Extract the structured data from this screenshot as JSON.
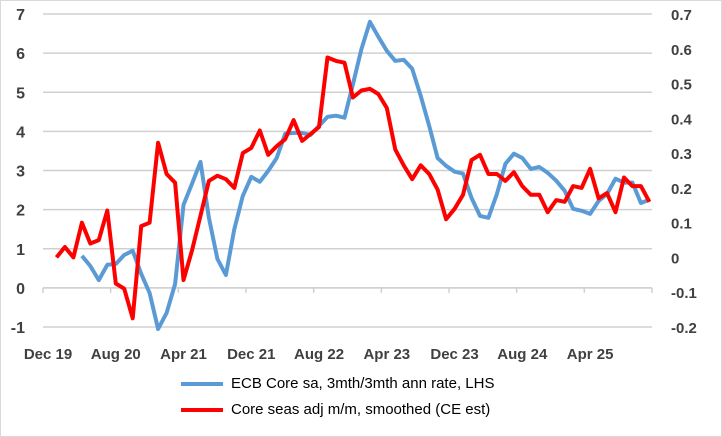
{
  "chart_data": {
    "type": "line",
    "x_tick_labels": [
      "Dec 19",
      "Aug 20",
      "Apr 21",
      "Dec 21",
      "Aug 22",
      "Apr 23",
      "Dec 23",
      "Aug 24",
      "Apr 25"
    ],
    "x_axis_start": "Dec 19",
    "x_axis_end": "Nov 25",
    "left_axis": {
      "ylim": [
        -1,
        7
      ],
      "ticks": [
        "7",
        "6",
        "5",
        "4",
        "3",
        "2",
        "1",
        "0",
        "-1"
      ],
      "tick_values": [
        7,
        6,
        5,
        4,
        3,
        2,
        1,
        0,
        -1
      ]
    },
    "right_axis": {
      "ylim": [
        -0.2,
        0.7
      ],
      "ticks": [
        "0.7",
        "0.6",
        "0.5",
        "0.4",
        "0.3",
        "0.2",
        "0.1",
        "0",
        "-0.1",
        "-0.2"
      ],
      "tick_values": [
        0.7,
        0.6,
        0.5,
        0.4,
        0.3,
        0.2,
        0.1,
        0,
        -0.1,
        -0.2
      ]
    },
    "grid": true,
    "legend_position": "bottom",
    "series": [
      {
        "name": "ECB Core sa, 3mth/3mth ann rate, LHS",
        "axis": "left",
        "color": "#5b9bd5",
        "start_month_offset": 4,
        "values": [
          0.82,
          0.56,
          0.2,
          0.59,
          0.61,
          0.84,
          0.95,
          0.36,
          -0.13,
          -1.05,
          -0.64,
          0.1,
          2.12,
          2.66,
          3.22,
          1.79,
          0.74,
          0.33,
          1.5,
          2.35,
          2.84,
          2.71,
          2.99,
          3.32,
          3.94,
          3.96,
          3.96,
          3.91,
          4.14,
          4.37,
          4.4,
          4.35,
          5.2,
          6.1,
          6.8,
          6.42,
          6.06,
          5.8,
          5.83,
          5.6,
          4.91,
          4.14,
          3.32,
          3.12,
          2.97,
          2.92,
          2.3,
          1.84,
          1.79,
          2.4,
          3.17,
          3.43,
          3.32,
          3.04,
          3.09,
          2.94,
          2.74,
          2.48,
          2.02,
          1.97,
          1.89,
          2.22,
          2.4,
          2.79,
          2.69,
          2.69,
          2.17,
          2.25
        ]
      },
      {
        "name": "Core seas adj m/m, smoothed (CE est)",
        "axis": "right",
        "color": "#ff0000",
        "start_month_offset": 1,
        "values": [
          0.0,
          0.03,
          0.0,
          0.1,
          0.04,
          0.05,
          0.135,
          -0.075,
          -0.09,
          -0.175,
          0.09,
          0.1,
          0.33,
          0.24,
          0.215,
          -0.065,
          0.02,
          0.12,
          0.22,
          0.235,
          0.225,
          0.2,
          0.3,
          0.315,
          0.365,
          0.295,
          0.32,
          0.34,
          0.395,
          0.335,
          0.355,
          0.375,
          0.575,
          0.565,
          0.56,
          0.46,
          0.48,
          0.485,
          0.47,
          0.43,
          0.31,
          0.265,
          0.225,
          0.265,
          0.24,
          0.195,
          0.11,
          0.14,
          0.18,
          0.28,
          0.295,
          0.24,
          0.24,
          0.22,
          0.245,
          0.205,
          0.18,
          0.18,
          0.13,
          0.165,
          0.16,
          0.205,
          0.2,
          0.255,
          0.17,
          0.185,
          0.13,
          0.23,
          0.205,
          0.205,
          0.16
        ]
      }
    ]
  }
}
